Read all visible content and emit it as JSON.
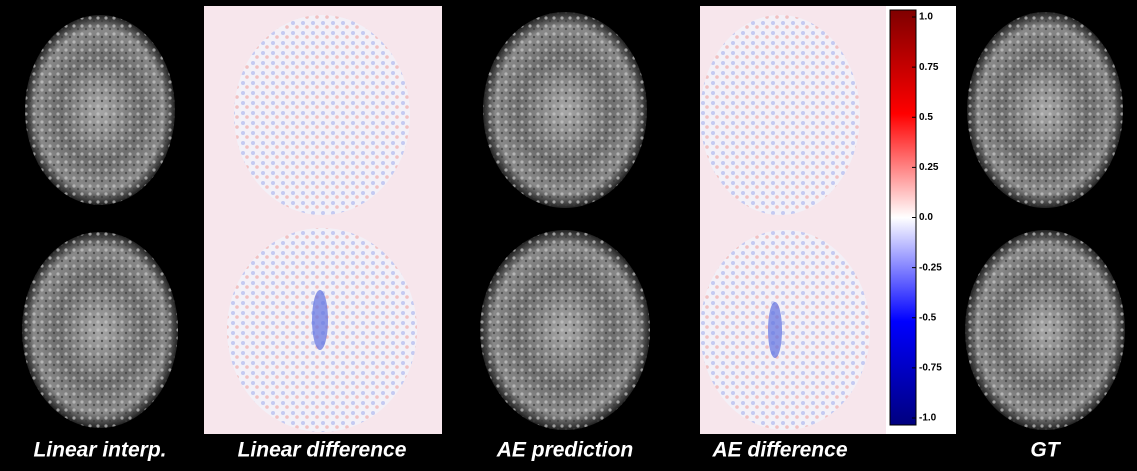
{
  "panels": [
    {
      "label": "Linear interp."
    },
    {
      "label": "Linear difference"
    },
    {
      "label": "AE prediction"
    },
    {
      "label": "AE  difference"
    },
    {
      "label": "GT"
    }
  ],
  "colorbar": {
    "lim": [
      -1,
      1
    ],
    "ticks": [
      {
        "value": 1,
        "label": "1.0"
      },
      0.75,
      0.5,
      0.25,
      {
        "value": 0,
        "label": "0.0"
      },
      -0.25,
      -0.5,
      -0.75,
      {
        "value": -1,
        "label": "-1.0"
      }
    ]
  }
}
